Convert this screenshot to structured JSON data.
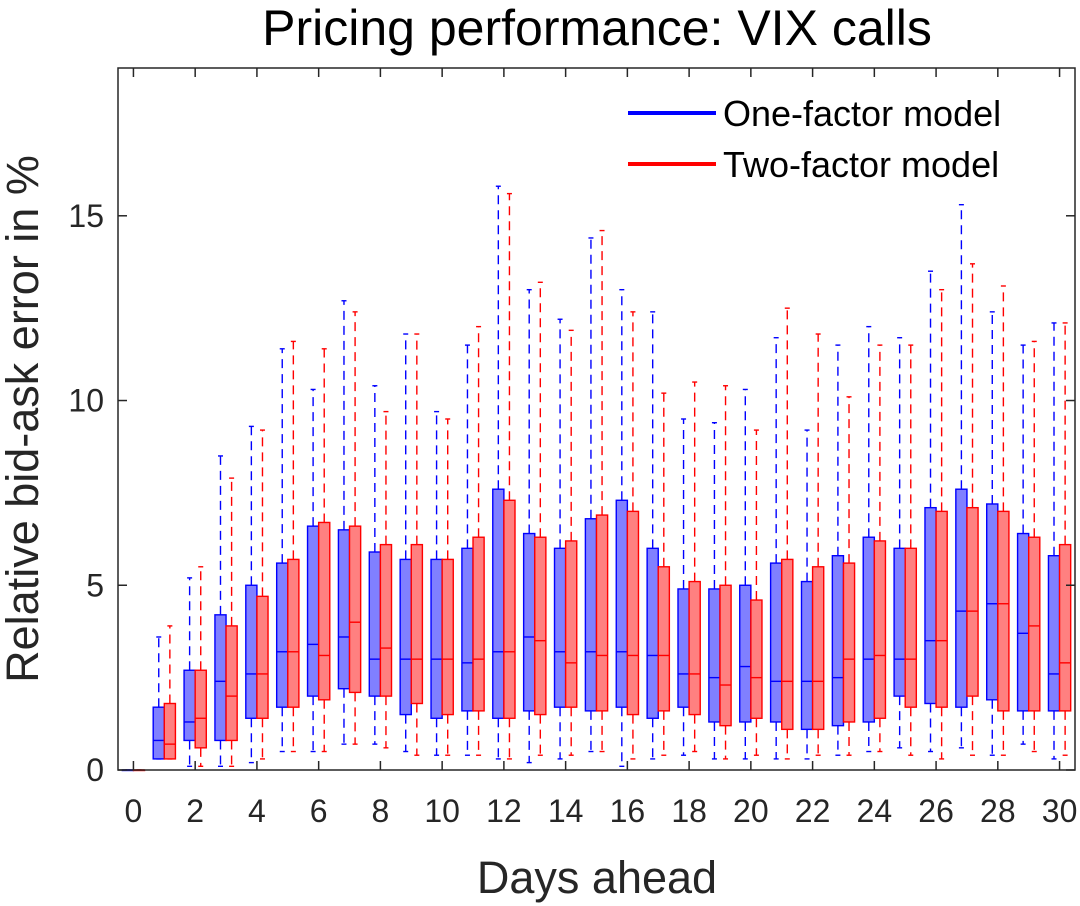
{
  "chart_data": {
    "type": "boxplot",
    "title": "Pricing performance: VIX calls",
    "xlabel": "Days ahead",
    "ylabel": "Relative bid-ask error in %",
    "xlim": [
      -0.5,
      30.5
    ],
    "ylim": [
      0,
      19
    ],
    "xticks": [
      "0",
      "2",
      "4",
      "6",
      "8",
      "10",
      "12",
      "14",
      "16",
      "18",
      "20",
      "22",
      "24",
      "26",
      "28",
      "30"
    ],
    "yticks": [
      "0",
      "5",
      "10",
      "15"
    ],
    "legend_position": "top-right",
    "series": [
      {
        "name": "One-factor model",
        "color": "#0000ff",
        "fill": "#8080ff",
        "boxes": [
          {
            "day": 0,
            "min": 0,
            "q1": 0,
            "median": 0,
            "q3": 0,
            "max": 0
          },
          {
            "day": 1,
            "min": 0.3,
            "q1": 0.3,
            "median": 0.8,
            "q3": 1.7,
            "max": 3.6
          },
          {
            "day": 2,
            "min": 0.1,
            "q1": 0.8,
            "median": 1.3,
            "q3": 2.7,
            "max": 5.2
          },
          {
            "day": 3,
            "min": 0.1,
            "q1": 0.8,
            "median": 2.4,
            "q3": 4.2,
            "max": 8.5
          },
          {
            "day": 4,
            "min": 0.2,
            "q1": 1.4,
            "median": 2.6,
            "q3": 5.0,
            "max": 9.3
          },
          {
            "day": 5,
            "min": 0.5,
            "q1": 1.7,
            "median": 3.2,
            "q3": 5.6,
            "max": 11.4
          },
          {
            "day": 6,
            "min": 0.5,
            "q1": 2.0,
            "median": 3.4,
            "q3": 6.6,
            "max": 10.3
          },
          {
            "day": 7,
            "min": 0.7,
            "q1": 2.2,
            "median": 3.6,
            "q3": 6.5,
            "max": 12.7
          },
          {
            "day": 8,
            "min": 0.7,
            "q1": 2.0,
            "median": 3.0,
            "q3": 5.9,
            "max": 10.4
          },
          {
            "day": 9,
            "min": 0.5,
            "q1": 1.5,
            "median": 3.0,
            "q3": 5.7,
            "max": 11.8
          },
          {
            "day": 10,
            "min": 0.4,
            "q1": 1.4,
            "median": 3.0,
            "q3": 5.7,
            "max": 9.7
          },
          {
            "day": 11,
            "min": 0.4,
            "q1": 1.6,
            "median": 2.9,
            "q3": 6.0,
            "max": 11.5
          },
          {
            "day": 12,
            "min": 0.3,
            "q1": 1.4,
            "median": 3.2,
            "q3": 7.6,
            "max": 15.8
          },
          {
            "day": 13,
            "min": 0.2,
            "q1": 1.6,
            "median": 3.6,
            "q3": 6.4,
            "max": 13.0
          },
          {
            "day": 14,
            "min": 0.3,
            "q1": 1.7,
            "median": 3.2,
            "q3": 6.0,
            "max": 12.2
          },
          {
            "day": 15,
            "min": 0.5,
            "q1": 1.6,
            "median": 3.2,
            "q3": 6.8,
            "max": 14.4
          },
          {
            "day": 16,
            "min": 0.1,
            "q1": 1.7,
            "median": 3.2,
            "q3": 7.3,
            "max": 13.0
          },
          {
            "day": 17,
            "min": 0.3,
            "q1": 1.4,
            "median": 3.1,
            "q3": 6.0,
            "max": 12.4
          },
          {
            "day": 18,
            "min": 0.4,
            "q1": 1.7,
            "median": 2.6,
            "q3": 4.9,
            "max": 9.5
          },
          {
            "day": 19,
            "min": 0.3,
            "q1": 1.3,
            "median": 2.5,
            "q3": 4.9,
            "max": 9.4
          },
          {
            "day": 20,
            "min": 0.3,
            "q1": 1.3,
            "median": 2.8,
            "q3": 5.0,
            "max": 10.3
          },
          {
            "day": 21,
            "min": 0.3,
            "q1": 1.3,
            "median": 2.4,
            "q3": 5.6,
            "max": 11.7
          },
          {
            "day": 22,
            "min": 0.3,
            "q1": 1.1,
            "median": 2.4,
            "q3": 5.1,
            "max": 9.2
          },
          {
            "day": 23,
            "min": 0.4,
            "q1": 1.2,
            "median": 2.5,
            "q3": 5.8,
            "max": 11.5
          },
          {
            "day": 24,
            "min": 0.5,
            "q1": 1.3,
            "median": 3.0,
            "q3": 6.3,
            "max": 12.0
          },
          {
            "day": 25,
            "min": 0.6,
            "q1": 2.0,
            "median": 3.0,
            "q3": 6.0,
            "max": 11.7
          },
          {
            "day": 26,
            "min": 0.5,
            "q1": 1.8,
            "median": 3.5,
            "q3": 7.1,
            "max": 13.5
          },
          {
            "day": 27,
            "min": 0.6,
            "q1": 1.7,
            "median": 4.3,
            "q3": 7.6,
            "max": 15.3
          },
          {
            "day": 28,
            "min": 0.4,
            "q1": 1.9,
            "median": 4.5,
            "q3": 7.2,
            "max": 12.4
          },
          {
            "day": 29,
            "min": 0.7,
            "q1": 1.6,
            "median": 3.7,
            "q3": 6.4,
            "max": 11.5
          },
          {
            "day": 30,
            "min": 0.3,
            "q1": 1.6,
            "median": 2.6,
            "q3": 5.8,
            "max": 12.1
          }
        ]
      },
      {
        "name": "Two-factor model",
        "color": "#ff0000",
        "fill": "#ff8080",
        "boxes": [
          {
            "day": 0,
            "min": 0,
            "q1": 0,
            "median": 0,
            "q3": 0,
            "max": 0
          },
          {
            "day": 1,
            "min": 0.3,
            "q1": 0.3,
            "median": 0.7,
            "q3": 1.8,
            "max": 3.9
          },
          {
            "day": 2,
            "min": 0.1,
            "q1": 0.6,
            "median": 1.4,
            "q3": 2.7,
            "max": 5.5
          },
          {
            "day": 3,
            "min": 0.1,
            "q1": 0.8,
            "median": 2.0,
            "q3": 3.9,
            "max": 7.9
          },
          {
            "day": 4,
            "min": 0.3,
            "q1": 1.4,
            "median": 2.6,
            "q3": 4.7,
            "max": 9.2
          },
          {
            "day": 5,
            "min": 0.5,
            "q1": 1.7,
            "median": 3.2,
            "q3": 5.7,
            "max": 11.6
          },
          {
            "day": 6,
            "min": 0.5,
            "q1": 1.9,
            "median": 3.1,
            "q3": 6.7,
            "max": 11.4
          },
          {
            "day": 7,
            "min": 0.7,
            "q1": 2.1,
            "median": 4.0,
            "q3": 6.6,
            "max": 12.4
          },
          {
            "day": 8,
            "min": 0.6,
            "q1": 2.0,
            "median": 3.3,
            "q3": 6.1,
            "max": 9.7
          },
          {
            "day": 9,
            "min": 0.4,
            "q1": 1.8,
            "median": 3.0,
            "q3": 6.1,
            "max": 11.8
          },
          {
            "day": 10,
            "min": 0.4,
            "q1": 1.5,
            "median": 3.0,
            "q3": 5.7,
            "max": 9.5
          },
          {
            "day": 11,
            "min": 0.4,
            "q1": 1.6,
            "median": 3.0,
            "q3": 6.3,
            "max": 12.0
          },
          {
            "day": 12,
            "min": 0.3,
            "q1": 1.4,
            "median": 3.2,
            "q3": 7.3,
            "max": 15.6
          },
          {
            "day": 13,
            "min": 0.4,
            "q1": 1.5,
            "median": 3.5,
            "q3": 6.3,
            "max": 13.2
          },
          {
            "day": 14,
            "min": 0.4,
            "q1": 1.7,
            "median": 2.9,
            "q3": 6.2,
            "max": 11.9
          },
          {
            "day": 15,
            "min": 0.5,
            "q1": 1.6,
            "median": 3.1,
            "q3": 6.9,
            "max": 14.6
          },
          {
            "day": 16,
            "min": 0.3,
            "q1": 1.5,
            "median": 3.1,
            "q3": 7.0,
            "max": 12.4
          },
          {
            "day": 17,
            "min": 0.4,
            "q1": 1.6,
            "median": 3.1,
            "q3": 5.5,
            "max": 10.2
          },
          {
            "day": 18,
            "min": 0.5,
            "q1": 1.5,
            "median": 2.6,
            "q3": 5.1,
            "max": 10.5
          },
          {
            "day": 19,
            "min": 0.3,
            "q1": 1.2,
            "median": 2.3,
            "q3": 5.0,
            "max": 10.4
          },
          {
            "day": 20,
            "min": 0.4,
            "q1": 1.4,
            "median": 2.5,
            "q3": 4.6,
            "max": 9.2
          },
          {
            "day": 21,
            "min": 0.3,
            "q1": 1.1,
            "median": 2.4,
            "q3": 5.7,
            "max": 12.5
          },
          {
            "day": 22,
            "min": 0.4,
            "q1": 1.1,
            "median": 2.4,
            "q3": 5.5,
            "max": 11.8
          },
          {
            "day": 23,
            "min": 0.4,
            "q1": 1.3,
            "median": 3.0,
            "q3": 5.6,
            "max": 10.1
          },
          {
            "day": 24,
            "min": 0.5,
            "q1": 1.4,
            "median": 3.1,
            "q3": 6.2,
            "max": 11.5
          },
          {
            "day": 25,
            "min": 0.4,
            "q1": 1.7,
            "median": 3.0,
            "q3": 6.0,
            "max": 11.5
          },
          {
            "day": 26,
            "min": 0.3,
            "q1": 1.7,
            "median": 3.5,
            "q3": 7.0,
            "max": 13.0
          },
          {
            "day": 27,
            "min": 0.4,
            "q1": 2.0,
            "median": 4.3,
            "q3": 7.1,
            "max": 13.7
          },
          {
            "day": 28,
            "min": 0.4,
            "q1": 1.6,
            "median": 4.5,
            "q3": 7.0,
            "max": 13.1
          },
          {
            "day": 29,
            "min": 0.5,
            "q1": 1.6,
            "median": 3.9,
            "q3": 6.3,
            "max": 11.6
          },
          {
            "day": 30,
            "min": 0.4,
            "q1": 1.6,
            "median": 2.9,
            "q3": 6.1,
            "max": 12.1
          }
        ]
      }
    ]
  }
}
